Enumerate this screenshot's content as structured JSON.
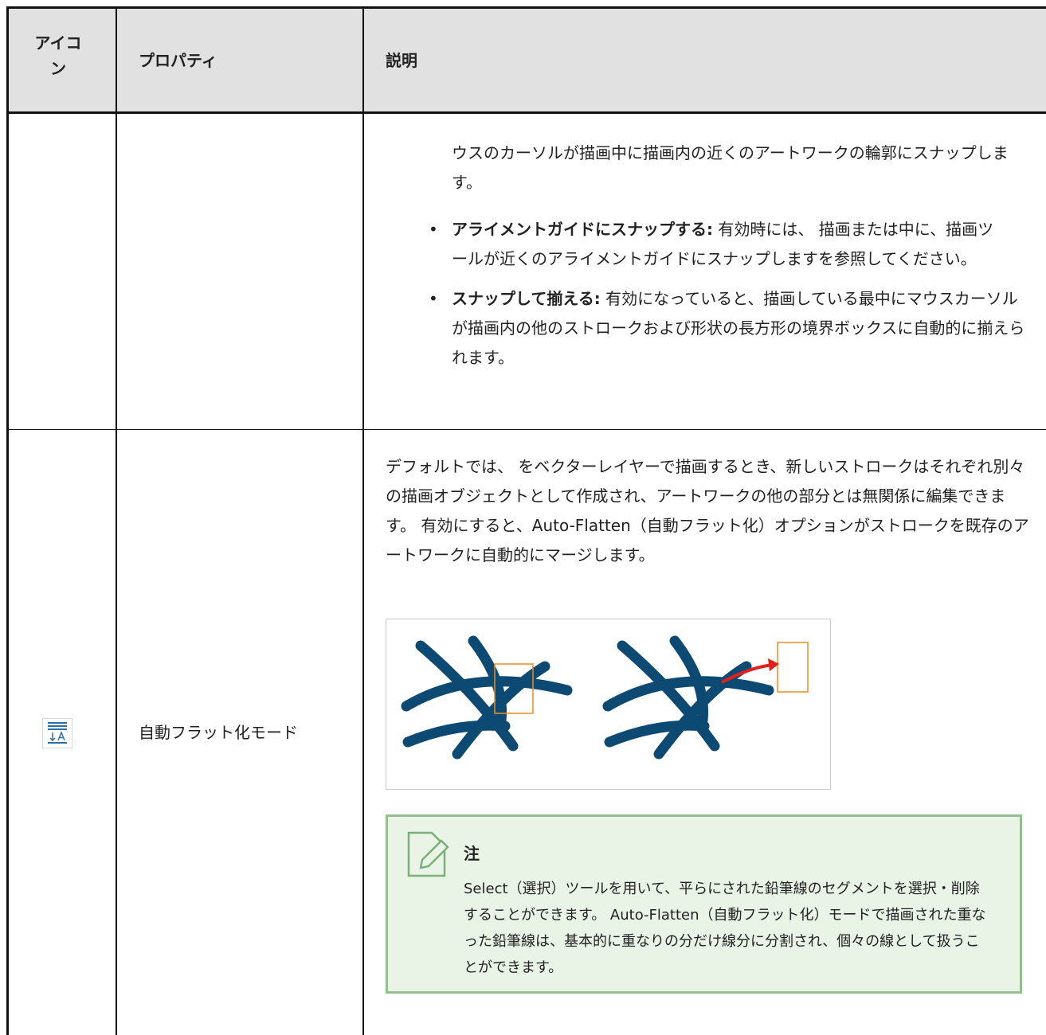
{
  "table": {
    "header": [
      "アイコン",
      "プロパティ",
      "説明"
    ],
    "rows": [
      {
        "description": {
          "continuation": "ウスのカーソルが描画中に描画内の近くのアートワークの輪郭にスナップします。",
          "bullets": [
            {
              "term": "アライメントガイドにスナップする:",
              "text": "有効時には、 描画または中に、描画ツールが近くのアライメントガイドにスナップしますを参照してください。"
            },
            {
              "term": "スナップして揃える:",
              "text": "有効になっていると、描画している最中にマウスカーソルが描画内の他のストロークおよび形状の長方形の境界ボックスに自動的に揃えられます。"
            }
          ]
        }
      },
      {
        "property": "自動フラット化モード",
        "description": {
          "paragraph": "デフォルトでは、 をベクターレイヤーで描画するとき、新しいストロークはそれぞれ別々の描画オブジェクトとして作成され、アートワークの他の部分とは無関係に編集できます。 有効にすると、Auto-Flatten（自動フラット化）オプションがストロークを既存のアートワークに自動的にマージします。",
          "note": {
            "title": "注",
            "text": "Select（選択）ツールを用いて、平らにされた鉛筆線のセグメントを選択・削除することができます。 Auto-Flatten（自動フラット化）モードで描画された重なった鉛筆線は、基本的に重なりの分だけ線分に分割され、個々の線として扱うことができます。"
          }
        }
      }
    ]
  }
}
